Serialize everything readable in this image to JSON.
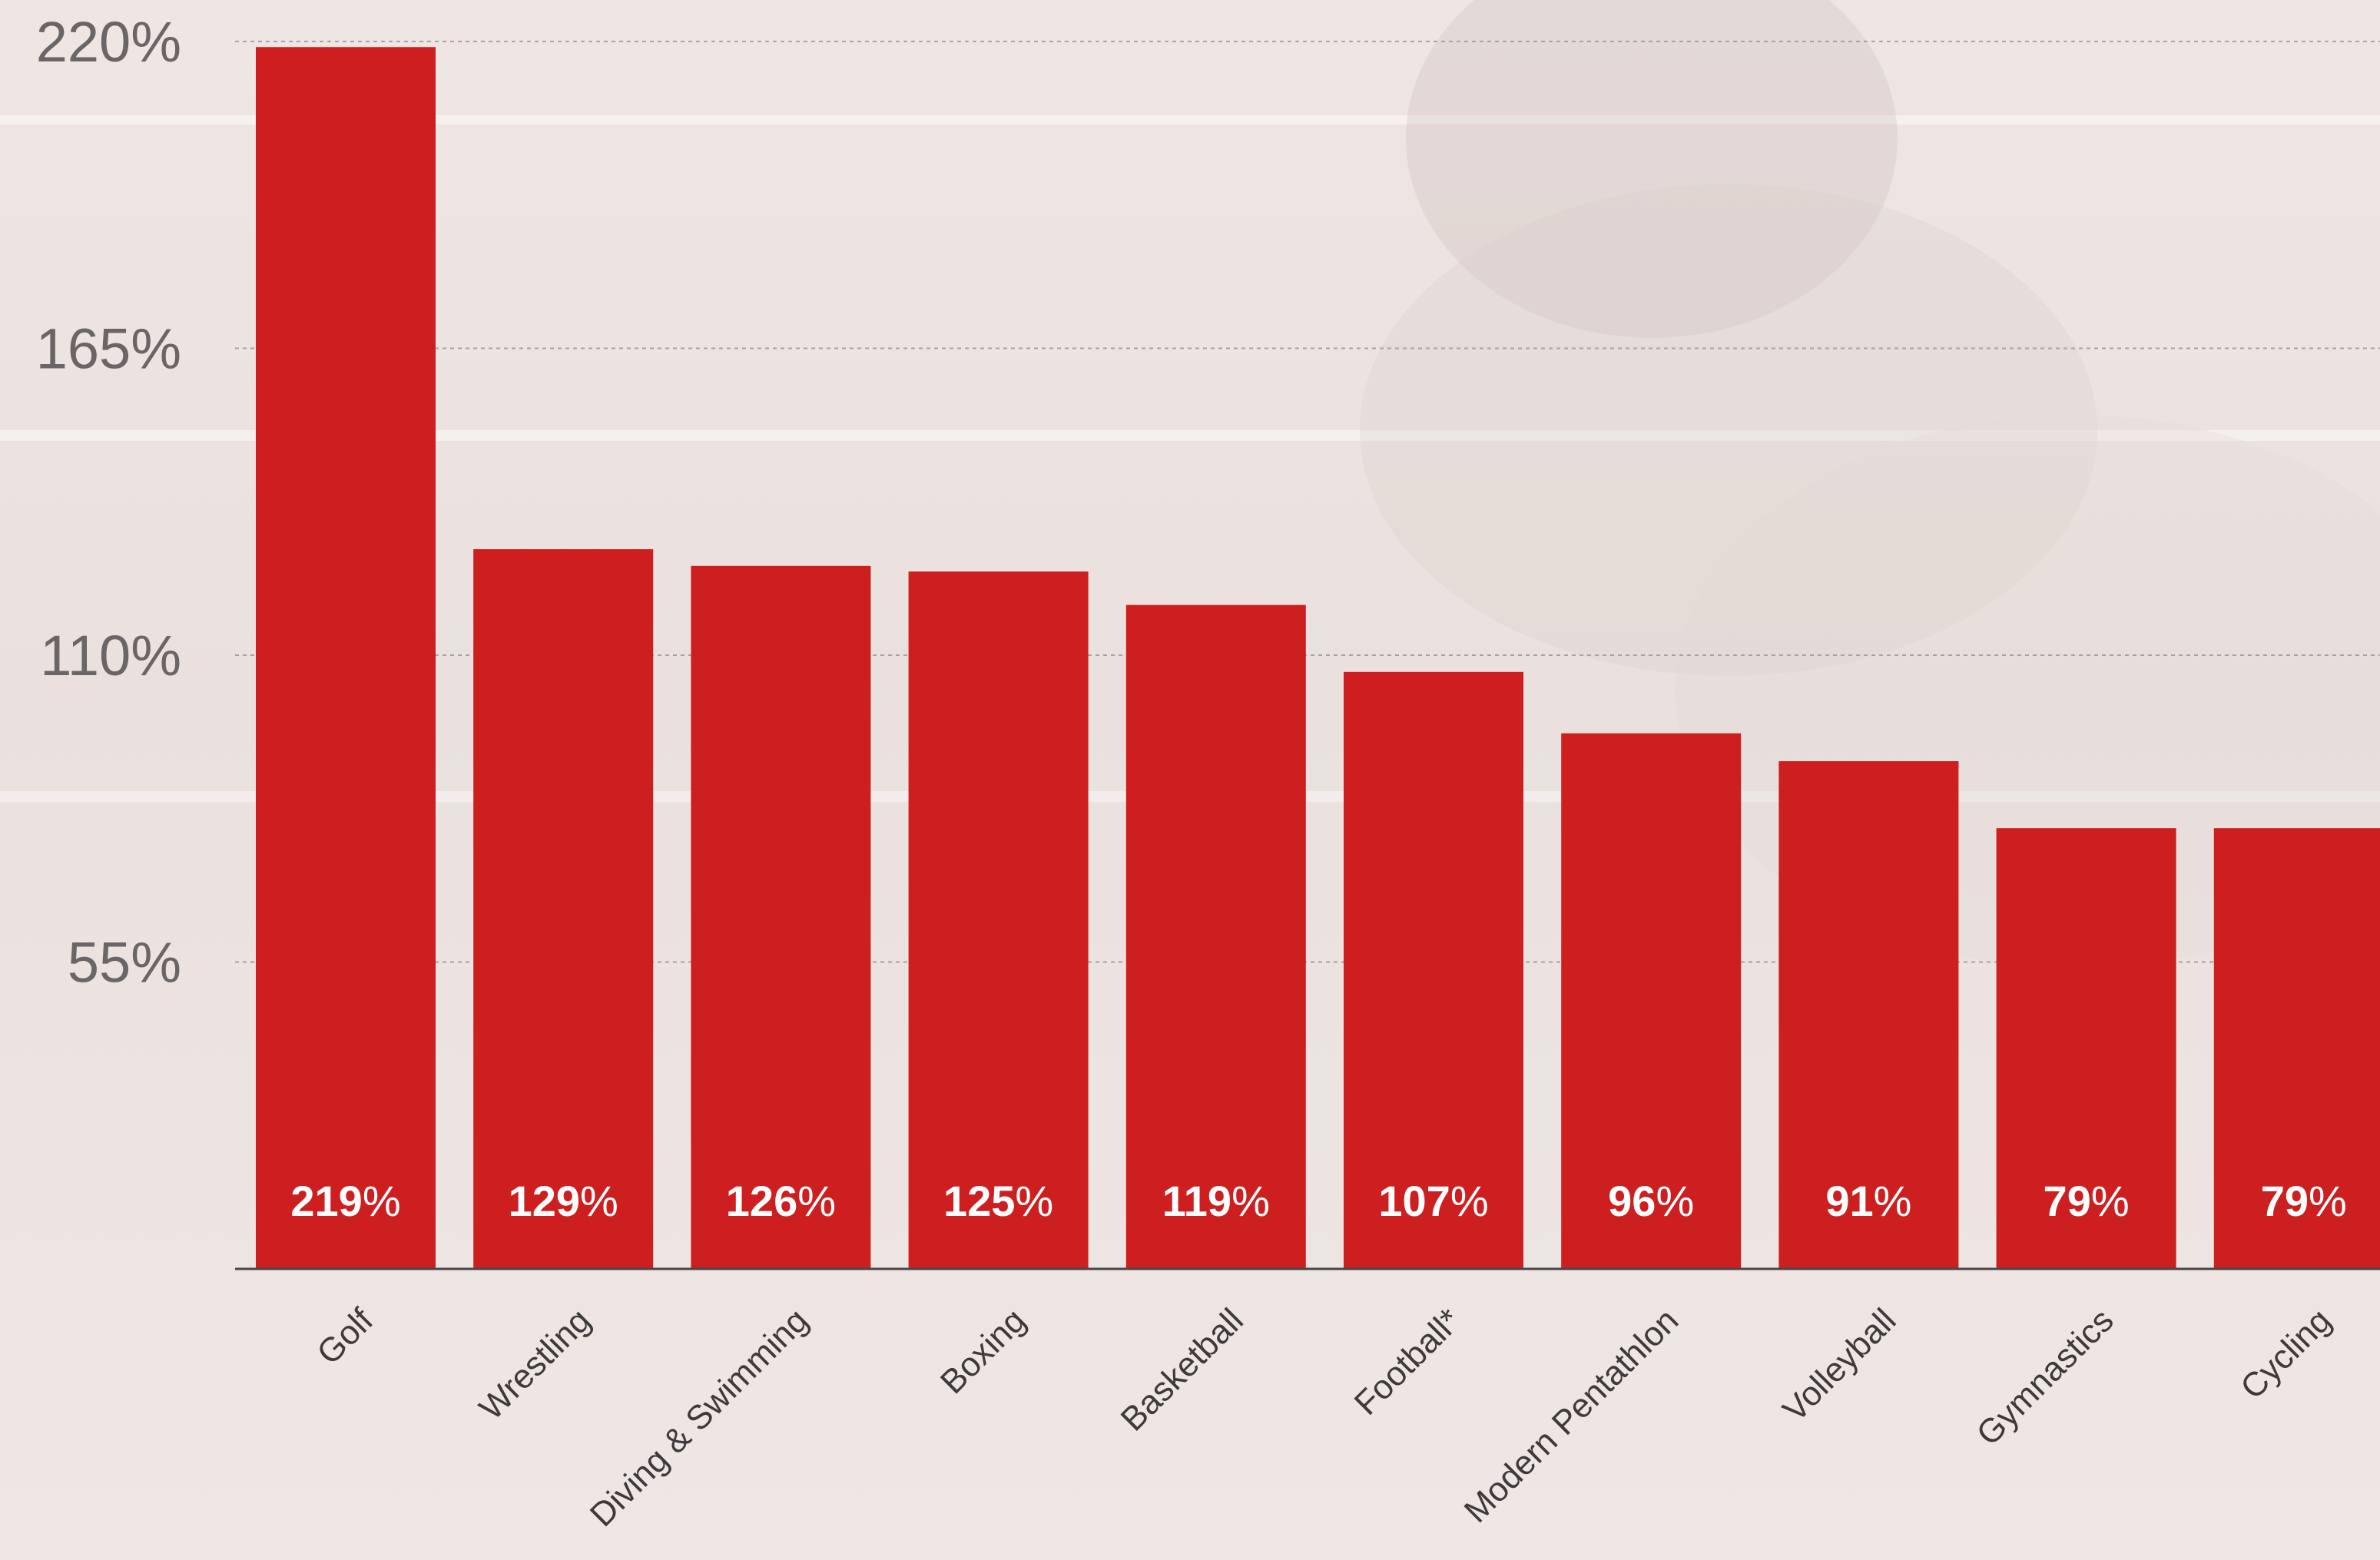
{
  "chart_data": {
    "type": "bar",
    "categories": [
      "Golf",
      "Wrestling",
      "Diving & Swimming",
      "Boxing",
      "Basketball",
      "Football*",
      "Modern Pentathlon",
      "Volleyball",
      "Gymnastics",
      "Cycling"
    ],
    "values": [
      219,
      129,
      126,
      125,
      119,
      107,
      96,
      91,
      79,
      79
    ],
    "value_labels": [
      "219",
      "129",
      "126",
      "125",
      "119",
      "107",
      "96",
      "91",
      "79",
      "79"
    ],
    "value_suffix": "%",
    "yticks": [
      55,
      110,
      165,
      220
    ],
    "ytick_labels": [
      "55%",
      "110%",
      "165%",
      "220%"
    ],
    "ylim": [
      0,
      220
    ],
    "title": "",
    "xlabel": "",
    "ylabel": "",
    "grid": true,
    "legend": "none",
    "colors": {
      "bar": "#cd1f20",
      "value_text": "#ffffff",
      "gridline": "#a7a1a0",
      "axis": "#4a4647",
      "tick_text": "#6a6566",
      "category_text": "#3d3a3b",
      "background": "#ede4e1"
    }
  }
}
